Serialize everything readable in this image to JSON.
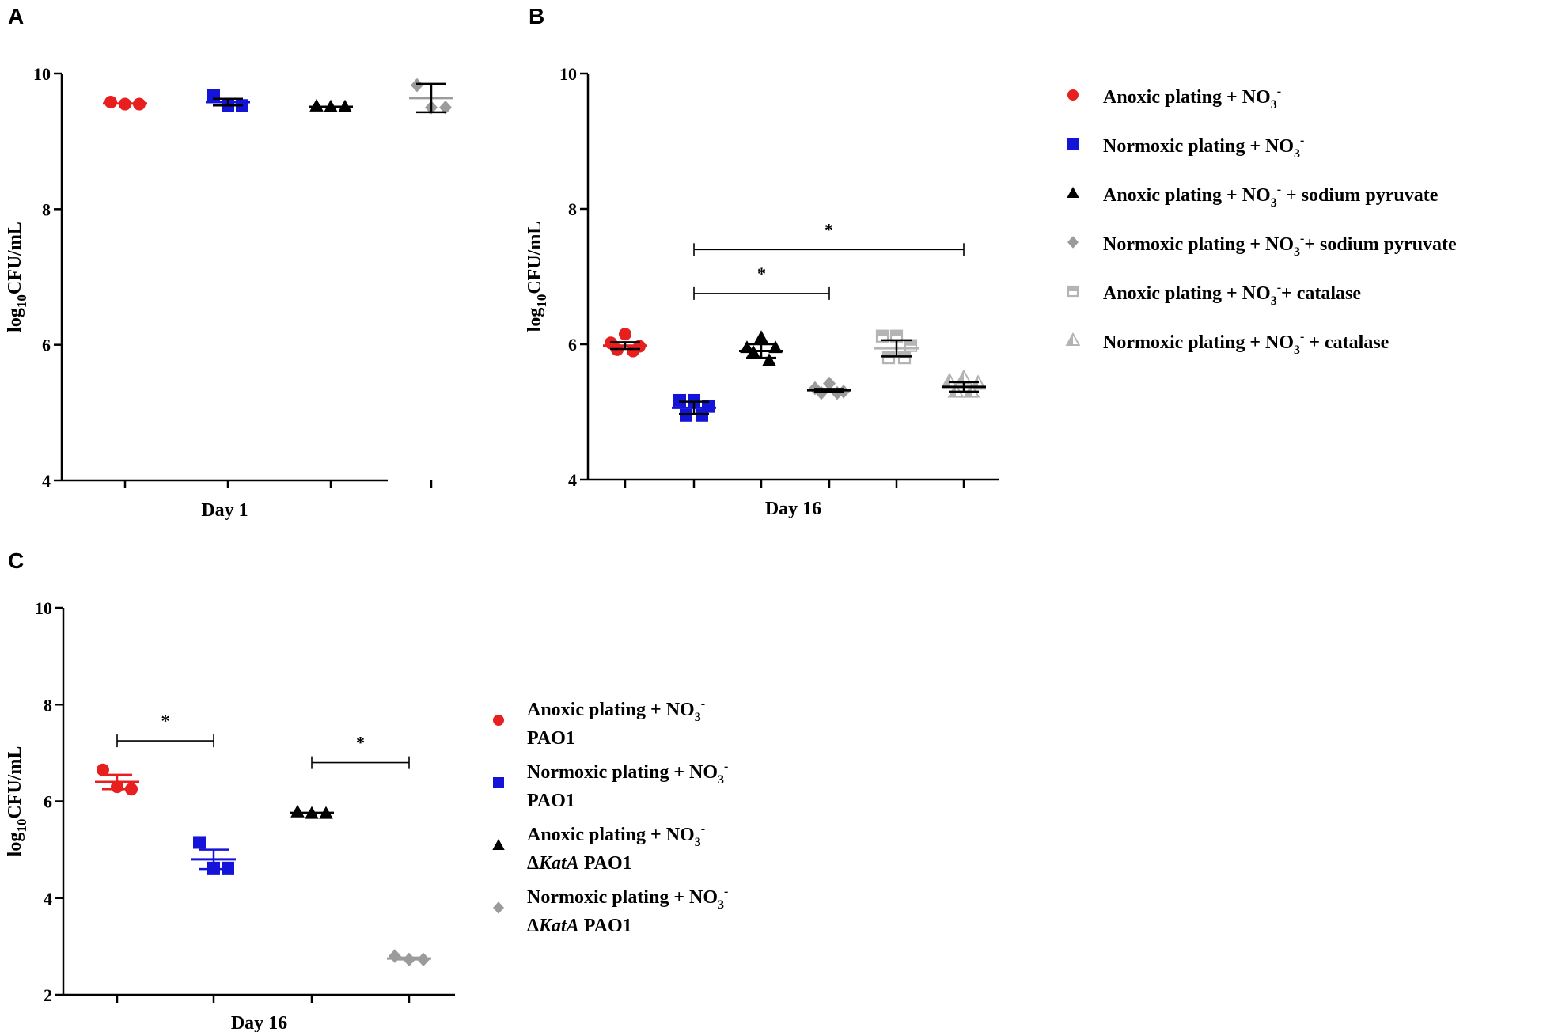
{
  "colors": {
    "red": "#e81f1f",
    "blue": "#1414d9",
    "black": "#000000",
    "gray": "#9b9b9b",
    "lightgray": "#b4b4b4",
    "axis": "#000000",
    "errorbar": "#000000"
  },
  "chart_data": [
    {
      "panel": "A",
      "type": "scatter",
      "xlabel": "Day 1",
      "ylabel": "log10CFU/mL",
      "ylim": [
        4,
        10
      ],
      "yticks": [
        "4",
        "6",
        "8",
        "10"
      ],
      "groups": [
        {
          "name": "Anoxic plating + NO3-",
          "marker": "circle",
          "color": "red",
          "points": [
            9.58,
            9.55,
            9.55
          ],
          "mean": 9.56,
          "err": 0.01,
          "mean_line_color": "red",
          "err_color": "red"
        },
        {
          "name": "Normoxic plating + NO3-",
          "marker": "square",
          "color": "blue",
          "points": [
            9.68,
            9.53,
            9.53
          ],
          "mean": 9.58,
          "err": 0.05,
          "mean_line_color": "blue",
          "err_color": "black"
        },
        {
          "name": "Anoxic plating + NO3- + sodium pyruvate",
          "marker": "triangle",
          "color": "black",
          "points": [
            9.52,
            9.51,
            9.51
          ],
          "mean": 9.51,
          "err": 0.01,
          "mean_line_color": "black",
          "err_color": "black"
        },
        {
          "name": "Normoxic plating + NO3- + sodium pyruvate",
          "marker": "diamond",
          "color": "gray",
          "points": [
            9.83,
            9.5,
            9.5
          ],
          "mean": 9.64,
          "err": 0.21,
          "mean_line_color": "gray",
          "err_color": "black"
        }
      ]
    },
    {
      "panel": "B",
      "type": "scatter",
      "xlabel": "Day 16",
      "ylabel": "log10CFU/mL",
      "ylim": [
        4,
        10
      ],
      "yticks": [
        "4",
        "6",
        "8",
        "10"
      ],
      "groups": [
        {
          "name": "Anoxic plating + NO3-",
          "marker": "circle",
          "color": "red",
          "points": [
            6.15,
            6.02,
            5.97,
            5.92,
            5.9
          ],
          "mean": 5.98,
          "err": 0.05,
          "mean_line_color": "red",
          "err_color": "black"
        },
        {
          "name": "Normoxic plating + NO3-",
          "marker": "square",
          "color": "blue",
          "points": [
            5.17,
            5.17,
            5.08,
            4.95,
            4.95
          ],
          "mean": 5.06,
          "err": 0.09,
          "mean_line_color": "blue",
          "err_color": "black"
        },
        {
          "name": "Anoxic plating + NO3- + sodium pyruvate",
          "marker": "triangle",
          "color": "black",
          "points": [
            6.1,
            5.95,
            5.95,
            5.88,
            5.76
          ],
          "mean": 5.9,
          "err": 0.1,
          "mean_line_color": "black",
          "err_color": "black"
        },
        {
          "name": "Normoxic plating + NO3- + sodium pyruvate",
          "marker": "diamond",
          "color": "gray",
          "points": [
            5.42,
            5.35,
            5.3,
            5.28,
            5.28
          ],
          "mean": 5.32,
          "err": 0.02,
          "mean_line_color": "black",
          "err_color": "black"
        },
        {
          "name": "Anoxic plating + NO3- + catalase",
          "marker": "halfsquare",
          "color": "lightgray",
          "points": [
            6.12,
            6.12,
            5.98,
            5.8,
            5.8
          ],
          "mean": 5.94,
          "err": 0.12,
          "mean_line_color": "lightgray",
          "err_color": "black"
        },
        {
          "name": "Normoxic plating + NO3- + catalase",
          "marker": "halftriangle",
          "color": "lightgray",
          "points": [
            5.5,
            5.45,
            5.42,
            5.3,
            5.3
          ],
          "mean": 5.37,
          "err": 0.07,
          "mean_line_color": "black",
          "err_color": "black"
        }
      ],
      "annotations": [
        {
          "text": "*",
          "from_group": 2,
          "to_group": 4,
          "y": 6.75
        },
        {
          "text": "*",
          "from_group": 2,
          "to_group": 6,
          "y": 7.4
        }
      ],
      "legend": {
        "placement": "right",
        "items": [
          {
            "marker": "circle",
            "color": "red",
            "label": "Anoxic plating + NO",
            "sub": "3",
            "sup": "-",
            "rest": ""
          },
          {
            "marker": "square",
            "color": "blue",
            "label": "Normoxic plating + NO",
            "sub": "3",
            "sup": "-",
            "rest": ""
          },
          {
            "marker": "triangle",
            "color": "black",
            "label": "Anoxic plating + NO",
            "sub": "3",
            "sup": "-",
            "rest": " + sodium pyruvate"
          },
          {
            "marker": "diamond",
            "color": "gray",
            "label": "Normoxic plating + NO",
            "sub": "3",
            "sup": "-",
            "rest": "+ sodium pyruvate"
          },
          {
            "marker": "halfsquare",
            "color": "lightgray",
            "label": "Anoxic plating + NO",
            "sub": "3",
            "sup": "-",
            "rest": "+ catalase"
          },
          {
            "marker": "halftriangle",
            "color": "lightgray",
            "label": "Normoxic plating + NO",
            "sub": "3",
            "sup": "-",
            "rest": " + catalase"
          }
        ]
      }
    },
    {
      "panel": "C",
      "type": "scatter",
      "xlabel": "Day 16",
      "ylabel": "log10CFU/mL",
      "ylim": [
        2,
        10
      ],
      "yticks": [
        "2",
        "4",
        "6",
        "8",
        "10"
      ],
      "groups": [
        {
          "name": "Anoxic plating + NO3- PAO1",
          "marker": "circle",
          "color": "red",
          "points": [
            6.65,
            6.3,
            6.25
          ],
          "mean": 6.4,
          "err": 0.15,
          "mean_line_color": "red",
          "err_color": "red"
        },
        {
          "name": "Normoxic plating + NO3- PAO1",
          "marker": "square",
          "color": "blue",
          "points": [
            5.15,
            4.62,
            4.62
          ],
          "mean": 4.8,
          "err": 0.2,
          "mean_line_color": "blue",
          "err_color": "blue"
        },
        {
          "name": "Anoxic plating + NO3- ΔKatA PAO1",
          "marker": "triangle",
          "color": "black",
          "points": [
            5.78,
            5.75,
            5.75
          ],
          "mean": 5.76,
          "err": 0.01,
          "mean_line_color": "black",
          "err_color": "black"
        },
        {
          "name": "Normoxic plating + NO3- ΔKatA PAO1",
          "marker": "diamond",
          "color": "gray",
          "points": [
            2.8,
            2.73,
            2.73
          ],
          "mean": 2.75,
          "err": 0.02,
          "mean_line_color": "gray",
          "err_color": "gray"
        }
      ],
      "annotations": [
        {
          "text": "*",
          "from_group": 1,
          "to_group": 2,
          "y": 7.25
        },
        {
          "text": "*",
          "from_group": 3,
          "to_group": 4,
          "y": 6.8
        }
      ],
      "legend": {
        "placement": "right",
        "items": [
          {
            "marker": "circle",
            "color": "red",
            "label": "Anoxic plating + NO",
            "sub": "3",
            "sup": "-",
            "line2_prefix": "",
            "line2_italic": "",
            "line2": "PAO1"
          },
          {
            "marker": "square",
            "color": "blue",
            "label": "Normoxic plating + NO",
            "sub": "3",
            "sup": "-",
            "line2_prefix": "",
            "line2_italic": "",
            "line2": "PAO1"
          },
          {
            "marker": "triangle",
            "color": "black",
            "label": "Anoxic plating + NO",
            "sub": "3",
            "sup": "-",
            "line2_prefix": "Δ",
            "line2_italic": "KatA",
            "line2": " PAO1"
          },
          {
            "marker": "diamond",
            "color": "gray",
            "label": "Normoxic plating + NO",
            "sub": "3",
            "sup": "-",
            "line2_prefix": "Δ",
            "line2_italic": "KatA",
            "line2": " PAO1"
          }
        ]
      }
    }
  ],
  "panel_labels": [
    "A",
    "B",
    "C"
  ]
}
